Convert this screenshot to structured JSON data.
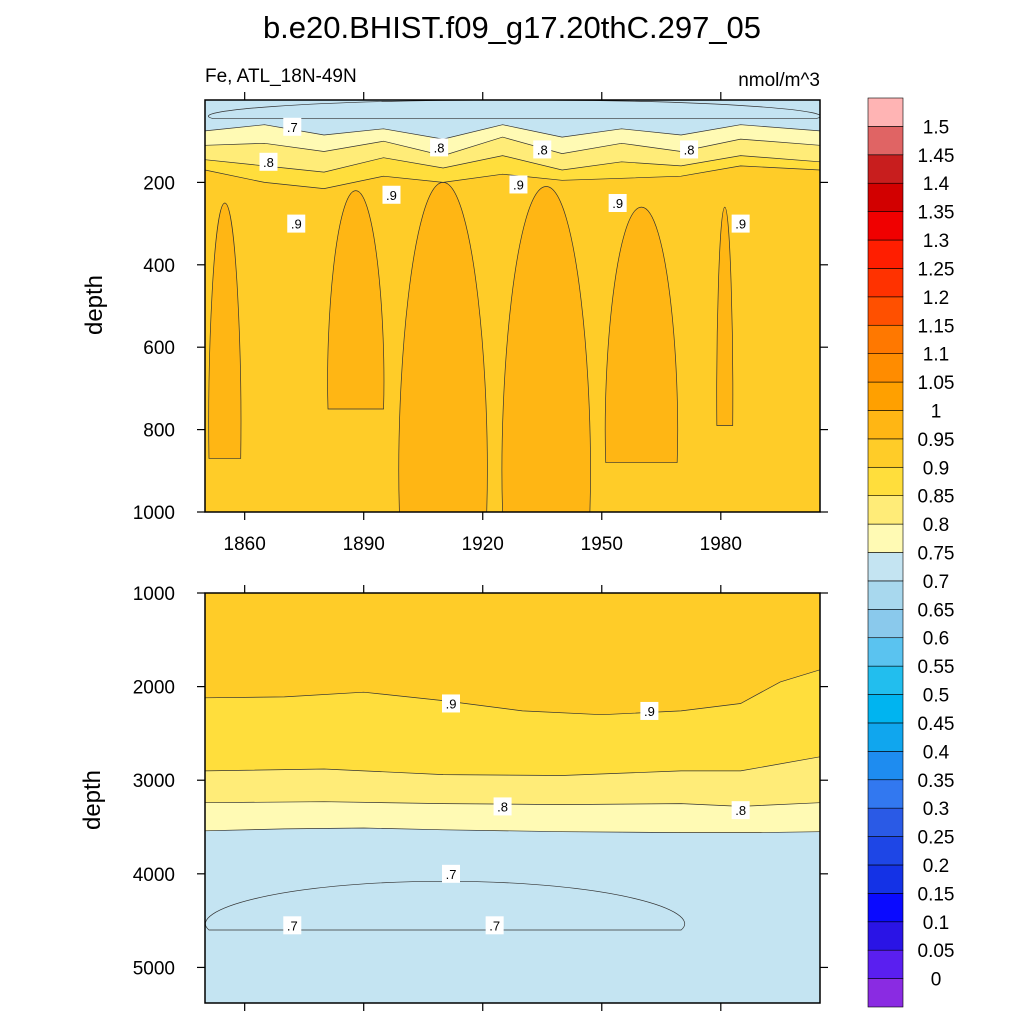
{
  "title": "b.e20.BHIST.f09_g17.20thC.297_05",
  "colorbar": {
    "labels": [
      "0",
      "0.05",
      "0.1",
      "0.15",
      "0.2",
      "0.25",
      "0.3",
      "0.35",
      "0.4",
      "0.45",
      "0.5",
      "0.55",
      "0.6",
      "0.65",
      "0.7",
      "0.75",
      "0.8",
      "0.85",
      "0.9",
      "0.95",
      "1",
      "1.05",
      "1.1",
      "1.15",
      "1.2",
      "1.25",
      "1.3",
      "1.35",
      "1.4",
      "1.45",
      "1.5"
    ],
    "colors": [
      "#8a2be2",
      "#5a1ff0",
      "#2a14e6",
      "#0a0aff",
      "#1432e6",
      "#1e46e6",
      "#2a5ae6",
      "#3278f0",
      "#1e8cf0",
      "#10a6ee",
      "#00b4f0",
      "#22beee",
      "#5ac3f0",
      "#8ac9ec",
      "#a8d8ee",
      "#c4e4f2",
      "#fffab4",
      "#ffec78",
      "#ffde3c",
      "#ffcc28",
      "#ffb614",
      "#ffa000",
      "#ff8c00",
      "#ff7800",
      "#ff5000",
      "#ff3200",
      "#ff1e00",
      "#f00000",
      "#d20000",
      "#c81e1e",
      "#e06464",
      "#ffb4b4"
    ]
  },
  "chart_data": [
    {
      "type": "heatmap",
      "subtitle_left": "Fe, ATL_18N-49N",
      "subtitle_right": "nmol/m^3",
      "xlabel": "",
      "ylabel": "depth",
      "xlim": [
        1850,
        2005
      ],
      "ylim": [
        1000,
        0
      ],
      "xticks": [
        1860,
        1890,
        1920,
        1950,
        1980
      ],
      "yticks": [
        200,
        400,
        600,
        800,
        1000
      ],
      "levels": [
        0.7,
        0.75,
        0.8,
        0.85,
        0.9,
        0.95
      ],
      "fields": [
        {
          "level": 0.75,
          "upper": [
            [
              1850,
              75
            ],
            [
              1865,
              60
            ],
            [
              1880,
              85
            ],
            [
              1895,
              70
            ],
            [
              1910,
              95
            ],
            [
              1925,
              60
            ],
            [
              1940,
              90
            ],
            [
              1955,
              70
            ],
            [
              1970,
              85
            ],
            [
              1985,
              60
            ],
            [
              2005,
              75
            ]
          ]
        },
        {
          "level": 0.8,
          "upper": [
            [
              1850,
              110
            ],
            [
              1865,
              105
            ],
            [
              1880,
              125
            ],
            [
              1895,
              100
            ],
            [
              1910,
              135
            ],
            [
              1925,
              90
            ],
            [
              1940,
              130
            ],
            [
              1955,
              105
            ],
            [
              1970,
              125
            ],
            [
              1985,
              95
            ],
            [
              2005,
              110
            ]
          ]
        },
        {
          "level": 0.85,
          "upper": [
            [
              1850,
              145
            ],
            [
              1865,
              160
            ],
            [
              1880,
              175
            ],
            [
              1895,
              140
            ],
            [
              1910,
              165
            ],
            [
              1925,
              135
            ],
            [
              1940,
              170
            ],
            [
              1955,
              150
            ],
            [
              1970,
              160
            ],
            [
              1985,
              135
            ],
            [
              2005,
              150
            ]
          ]
        },
        {
          "level": 0.9,
          "upper": [
            [
              1850,
              170
            ],
            [
              1865,
              200
            ],
            [
              1880,
              215
            ],
            [
              1895,
              185
            ],
            [
              1910,
              200
            ],
            [
              1925,
              180
            ],
            [
              1940,
              195
            ],
            [
              1955,
              190
            ],
            [
              1970,
              185
            ],
            [
              1985,
              160
            ],
            [
              2005,
              170
            ]
          ]
        }
      ],
      "patches": [
        {
          "level": 0.95,
          "x": [
            1851,
            1859
          ],
          "top": 250,
          "bottom": 870
        },
        {
          "level": 0.95,
          "x": [
            1881,
            1895
          ],
          "top": 220,
          "bottom": 750
        },
        {
          "level": 0.95,
          "x": [
            1899,
            1921
          ],
          "top": 200,
          "bottom": 1000
        },
        {
          "level": 0.95,
          "x": [
            1925,
            1947
          ],
          "top": 210,
          "bottom": 1000
        },
        {
          "level": 0.95,
          "x": [
            1951,
            1969
          ],
          "top": 260,
          "bottom": 880
        },
        {
          "level": 0.95,
          "x": [
            1979,
            1983
          ],
          "top": 260,
          "bottom": 790
        },
        {
          "level": 0.7,
          "x": [
            1852,
            2004
          ],
          "top": 0,
          "bottom": 45
        }
      ],
      "contour_labels": [
        {
          "text": ".7",
          "x": 1872,
          "y": 65
        },
        {
          "text": ".8",
          "x": 1866,
          "y": 150
        },
        {
          "text": ".8",
          "x": 1909,
          "y": 115
        },
        {
          "text": ".8",
          "x": 1935,
          "y": 120
        },
        {
          "text": ".8",
          "x": 1972,
          "y": 120
        },
        {
          "text": ".9",
          "x": 1873,
          "y": 300
        },
        {
          "text": ".9",
          "x": 1897,
          "y": 230
        },
        {
          "text": ".9",
          "x": 1929,
          "y": 205
        },
        {
          "text": ".9",
          "x": 1954,
          "y": 250
        },
        {
          "text": ".9",
          "x": 1985,
          "y": 300
        }
      ]
    },
    {
      "type": "heatmap",
      "xlabel": "",
      "ylabel": "depth",
      "xlim": [
        1850,
        2005
      ],
      "ylim": [
        5380,
        1000
      ],
      "xticks": [
        1860,
        1890,
        1920,
        1950,
        1980
      ],
      "yticks": [
        1000,
        2000,
        3000,
        4000,
        5000
      ],
      "levels": [
        0.7,
        0.75,
        0.8,
        0.85,
        0.9,
        0.95
      ],
      "fields": [
        {
          "level": 0.9,
          "upper": [
            [
              1850,
              2120
            ],
            [
              1870,
              2110
            ],
            [
              1890,
              2060
            ],
            [
              1910,
              2150
            ],
            [
              1930,
              2260
            ],
            [
              1950,
              2300
            ],
            [
              1970,
              2260
            ],
            [
              1985,
              2180
            ],
            [
              1995,
              1950
            ],
            [
              2005,
              1820
            ]
          ]
        },
        {
          "level": 0.85,
          "upper": [
            [
              1850,
              2900
            ],
            [
              1880,
              2880
            ],
            [
              1910,
              2940
            ],
            [
              1940,
              2950
            ],
            [
              1970,
              2900
            ],
            [
              1985,
              2900
            ],
            [
              2005,
              2750
            ]
          ]
        },
        {
          "level": 0.8,
          "upper": [
            [
              1850,
              3240
            ],
            [
              1880,
              3230
            ],
            [
              1910,
              3250
            ],
            [
              1940,
              3260
            ],
            [
              1970,
              3250
            ],
            [
              1985,
              3280
            ],
            [
              2005,
              3240
            ]
          ]
        },
        {
          "level": 0.75,
          "upper": [
            [
              1850,
              3540
            ],
            [
              1870,
              3520
            ],
            [
              1890,
              3510
            ],
            [
              1910,
              3530
            ],
            [
              1940,
              3550
            ],
            [
              1970,
              3560
            ],
            [
              1990,
              3560
            ],
            [
              2005,
              3550
            ]
          ]
        }
      ],
      "patches": [
        {
          "level": 0.7,
          "x": [
            1851,
            1970
          ],
          "top": 4080,
          "bottom": 4600
        }
      ],
      "contour_labels": [
        {
          "text": ".9",
          "x": 1912,
          "y": 2180
        },
        {
          "text": ".9",
          "x": 1962,
          "y": 2260
        },
        {
          "text": ".8",
          "x": 1925,
          "y": 3280
        },
        {
          "text": ".8",
          "x": 1985,
          "y": 3320
        },
        {
          "text": ".7",
          "x": 1912,
          "y": 4000
        },
        {
          "text": ".7",
          "x": 1872,
          "y": 4550
        },
        {
          "text": ".7",
          "x": 1923,
          "y": 4550
        }
      ]
    }
  ]
}
